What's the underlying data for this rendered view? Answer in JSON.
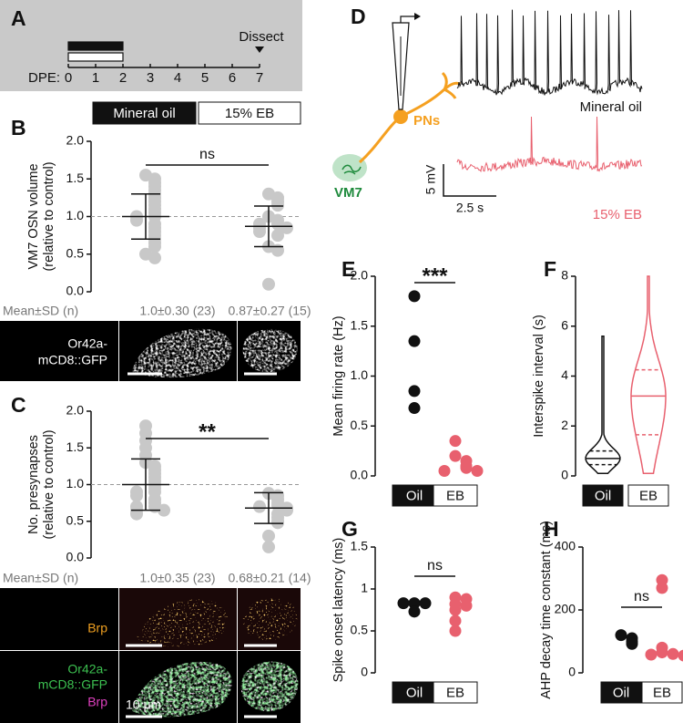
{
  "chart_data": [
    {
      "type": "timeline",
      "panel": "A",
      "xlabel": "DPE:",
      "xlim": [
        0,
        7
      ],
      "xticks": [
        0,
        1,
        2,
        3,
        4,
        5,
        6,
        7
      ],
      "bars": [
        {
          "color": "#111111",
          "start": 0,
          "end": 2
        },
        {
          "color": "#ffffff",
          "start": 0,
          "end": 2
        }
      ],
      "annotation": {
        "label": "Dissect",
        "x": 7
      }
    },
    {
      "type": "dot",
      "panel": "B",
      "ylabel": [
        "VM7 OSN volume",
        "(relative to control)"
      ],
      "ylim": [
        0,
        2
      ],
      "yticks": [
        {
          "value": 0,
          "label": "0.0"
        },
        0.5,
        {
          "value": 1,
          "label": "1.0"
        },
        1.5,
        {
          "value": 2,
          "label": "2.0"
        }
      ],
      "refline": 1,
      "series": [
        {
          "name": "Mineral oil",
          "color": "#c8c8c8",
          "label_fill": "#111111",
          "values": [
            1.55,
            1.5,
            1.45,
            1.4,
            1.35,
            1.3,
            1.25,
            1.2,
            1.15,
            1.1,
            1.05,
            1.0,
            1.0,
            0.95,
            0.9,
            0.85,
            0.8,
            0.75,
            0.7,
            0.65,
            0.6,
            0.5,
            0.45
          ],
          "mean": 1.0,
          "sd": 0.3
        },
        {
          "name": "15% EB",
          "color": "#c8c8c8",
          "label_fill": "#ffffff",
          "values": [
            1.3,
            1.25,
            1.2,
            1.15,
            1.0,
            0.95,
            0.9,
            0.9,
            0.85,
            0.85,
            0.8,
            0.75,
            0.6,
            0.55,
            0.1
          ],
          "mean": 0.87,
          "sd": 0.27
        }
      ],
      "significance": "ns",
      "summary": {
        "label": "Mean±SD (n)",
        "values": [
          "1.0±0.30 (23)",
          "0.87±0.27 (15)"
        ]
      }
    },
    {
      "type": "dot",
      "panel": "C",
      "ylabel": [
        "No. presynapses",
        "(relative to control)"
      ],
      "ylim": [
        0,
        2
      ],
      "yticks": [
        {
          "value": 0,
          "label": "0.0"
        },
        0.5,
        {
          "value": 1,
          "label": "1.0"
        },
        1.5,
        {
          "value": 2,
          "label": "2.0"
        }
      ],
      "refline": 1,
      "series": [
        {
          "color": "#c8c8c8",
          "values": [
            1.8,
            1.7,
            1.6,
            1.5,
            1.4,
            1.3,
            1.25,
            1.2,
            1.15,
            1.1,
            1.05,
            1.0,
            0.95,
            0.9,
            0.9,
            0.85,
            0.8,
            0.75,
            0.7,
            0.7,
            0.65,
            0.65,
            0.6
          ],
          "mean": 1.0,
          "sd": 0.35
        },
        {
          "color": "#c8c8c8",
          "values": [
            0.88,
            0.85,
            0.8,
            0.75,
            0.72,
            0.7,
            0.68,
            0.65,
            0.6,
            0.55,
            0.5,
            0.48,
            0.3,
            0.15
          ],
          "mean": 0.68,
          "sd": 0.21
        }
      ],
      "significance": "**",
      "summary": {
        "label": "Mean±SD (n)",
        "values": [
          "1.0±0.35 (23)",
          "0.68±0.21 (14)"
        ]
      }
    },
    {
      "type": "dot",
      "panel": "E",
      "ylabel": [
        "Mean firing rate (Hz)"
      ],
      "ylim": [
        0,
        2
      ],
      "yticks": [
        {
          "value": 0,
          "label": "0.0"
        },
        0.5,
        {
          "value": 1,
          "label": "1.0"
        },
        1.5,
        {
          "value": 2,
          "label": "2.0"
        }
      ],
      "series": [
        {
          "name": "Oil",
          "color": "#111111",
          "label_fill": "#111111",
          "values": [
            1.8,
            1.35,
            0.85,
            0.68
          ]
        },
        {
          "name": "EB",
          "color": "#e8606e",
          "label_fill": "#ffffff",
          "values": [
            0.35,
            0.2,
            0.15,
            0.1,
            0.08,
            0.05,
            0.05
          ]
        }
      ],
      "significance": "***"
    },
    {
      "type": "violin",
      "panel": "F",
      "ylabel": [
        "Interspike interval (s)"
      ],
      "ylim": [
        0,
        8
      ],
      "yticks": [
        0,
        2,
        4,
        6,
        8
      ],
      "series": [
        {
          "name": "Oil",
          "color": "#111111",
          "label_fill": "#111111",
          "min": 0.1,
          "q1": 0.45,
          "median": 0.7,
          "q3": 1.0,
          "max": 5.6
        },
        {
          "name": "EB",
          "color": "#e8606e",
          "label_fill": "#ffffff",
          "min": 0.1,
          "q1": 1.65,
          "median": 3.2,
          "q3": 4.25,
          "max": 8.0
        }
      ]
    },
    {
      "type": "dot",
      "panel": "G",
      "ylabel": [
        "Spike onset latency (ms)"
      ],
      "ylim": [
        0,
        1.5
      ],
      "yticks": [
        0,
        0.5,
        1,
        1.5
      ],
      "series": [
        {
          "name": "Oil",
          "color": "#111111",
          "label_fill": "#111111",
          "values": [
            0.83,
            0.83,
            0.83,
            0.73
          ]
        },
        {
          "name": "EB",
          "color": "#e8606e",
          "label_fill": "#ffffff",
          "values": [
            0.9,
            0.88,
            0.82,
            0.8,
            0.75,
            0.62,
            0.5
          ]
        }
      ],
      "significance": "ns"
    },
    {
      "type": "dot",
      "panel": "H",
      "ylabel": [
        "AHP decay time constant (ms)"
      ],
      "ylim": [
        0,
        400
      ],
      "yticks": [
        0,
        200,
        400
      ],
      "series": [
        {
          "name": "Oil",
          "color": "#111111",
          "label_fill": "#111111",
          "values": [
            120,
            110,
            100,
            92
          ]
        },
        {
          "name": "EB",
          "color": "#e8606e",
          "label_fill": "#ffffff",
          "values": [
            295,
            270,
            80,
            65,
            60,
            58,
            55
          ]
        }
      ],
      "significance": "ns"
    }
  ],
  "diagram": {
    "panel": "D",
    "neuron": "PNs",
    "glomerulus": "VM7",
    "trace_oil": "Mineral oil",
    "trace_eb": "15% EB",
    "scale_v": "5 mV",
    "scale_t": "2.5 s"
  },
  "micrographs": {
    "volume_label": [
      "Or42a-",
      "mCD8::GFP"
    ],
    "brp_label": "Brp",
    "merge_label": [
      "Or42a-",
      "mCD8::GFP"
    ],
    "merge_brp_label": "Brp",
    "scale": "10 μm"
  }
}
